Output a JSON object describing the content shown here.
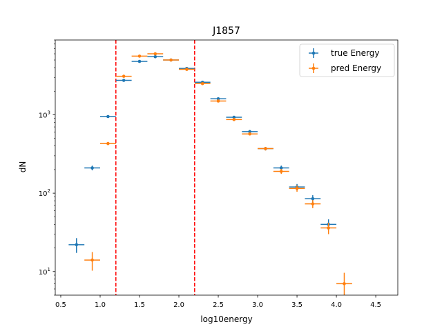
{
  "chart_data": {
    "type": "scatter",
    "title": "J1857",
    "xlabel": "log10energy",
    "ylabel": "dN",
    "xlim": [
      0.43,
      4.78
    ],
    "ylim": [
      5.0,
      9000
    ],
    "xscale": "linear",
    "yscale": "log",
    "x_ticks": [
      0.5,
      1.0,
      1.5,
      2.0,
      2.5,
      3.0,
      3.5,
      4.0,
      4.5
    ],
    "x_tick_labels": [
      "0.5",
      "1.0",
      "1.5",
      "2.0",
      "2.5",
      "3.0",
      "3.5",
      "4.0",
      "4.5"
    ],
    "y_major_ticks": [
      10,
      100,
      1000
    ],
    "y_tick_labels": [
      {
        "base": "10",
        "exp": "1"
      },
      {
        "base": "10",
        "exp": "2"
      },
      {
        "base": "10",
        "exp": "3"
      }
    ],
    "grid": false,
    "legend_position": "top-right",
    "x_halfwidth": 0.1,
    "series": [
      {
        "name": "true Energy",
        "color": "#1f77b4",
        "x": [
          0.7,
          0.9,
          1.1,
          1.3,
          1.5,
          1.7,
          1.9,
          2.1,
          2.3,
          2.5,
          2.7,
          2.9,
          3.1,
          3.3,
          3.5,
          3.7,
          3.9
        ],
        "y": [
          22,
          210,
          950,
          2750,
          4800,
          5500,
          5000,
          3900,
          2600,
          1600,
          930,
          610,
          370,
          210,
          120,
          85,
          40
        ]
      },
      {
        "name": "pred Energy",
        "color": "#ff7f0e",
        "x": [
          0.9,
          1.1,
          1.3,
          1.5,
          1.7,
          1.9,
          2.1,
          2.3,
          2.5,
          2.7,
          2.9,
          3.1,
          3.3,
          3.5,
          3.7,
          3.9,
          4.1
        ],
        "y": [
          14,
          430,
          3100,
          5600,
          6000,
          5000,
          3800,
          2500,
          1500,
          870,
          570,
          370,
          190,
          115,
          73,
          36,
          7
        ]
      }
    ],
    "vertical_lines": [
      {
        "x": 1.2,
        "color": "#ff0000",
        "style": "dashed"
      },
      {
        "x": 2.2,
        "color": "#ff0000",
        "style": "dashed"
      }
    ]
  }
}
